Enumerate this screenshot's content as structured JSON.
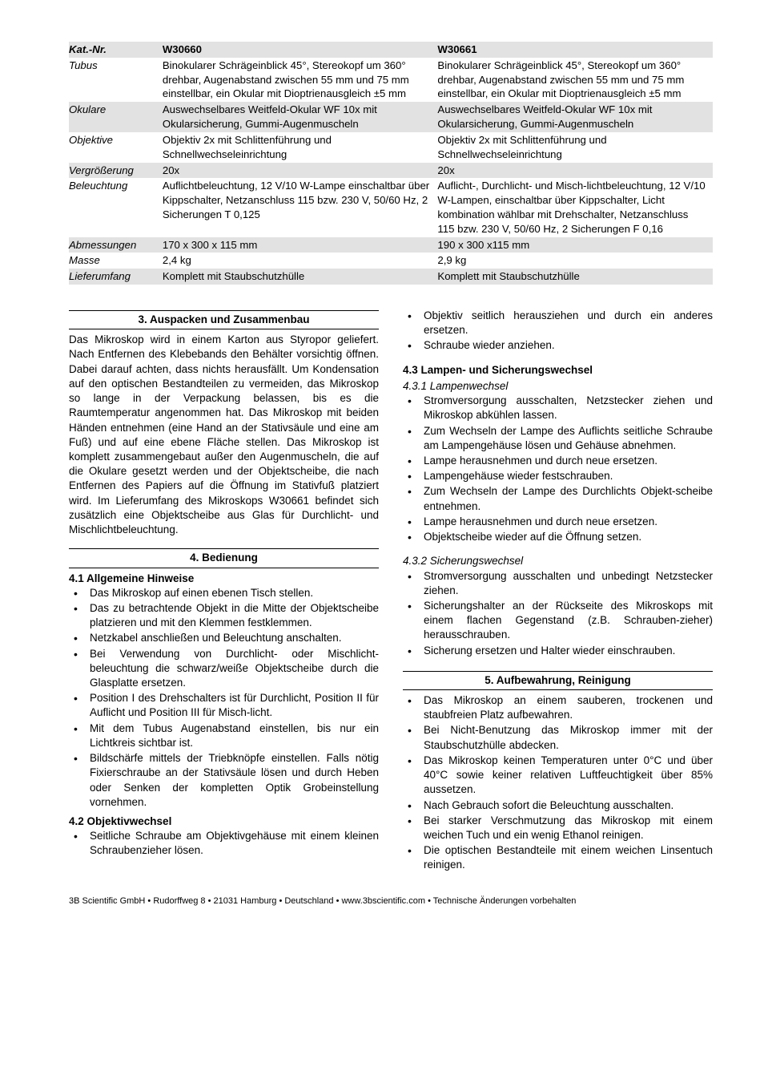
{
  "spec": {
    "rows": [
      {
        "shade": true,
        "label": "Kat.-Nr.",
        "a": "W30660",
        "b": "W30661",
        "header": true
      },
      {
        "shade": false,
        "label": "Tubus",
        "a": "Binokularer Schrägeinblick 45°, Stereokopf um 360° drehbar, Augenabstand zwischen 55 mm und 75 mm einstellbar, ein Okular mit Dioptrienausgleich ±5 mm",
        "b": "Binokularer Schrägeinblick 45°, Stereokopf um 360° drehbar, Augenabstand zwischen 55 mm und 75 mm einstellbar, ein Okular mit Dioptrienausgleich ±5 mm"
      },
      {
        "shade": true,
        "label": "Okulare",
        "a": "Auswechselbares Weitfeld-Okular WF 10x mit Okularsicherung, Gummi-Augenmuscheln",
        "b": "Auswechselbares Weitfeld-Okular WF 10x mit Okularsicherung, Gummi-Augenmuscheln"
      },
      {
        "shade": false,
        "label": "Objektive",
        "a": "Objektiv 2x mit Schlittenführung und Schnellwechseleinrichtung",
        "b": "Objektiv 2x mit Schlittenführung und Schnellwechseleinrichtung"
      },
      {
        "shade": true,
        "label": "Vergrößerung",
        "a": "20x",
        "b": "20x"
      },
      {
        "shade": false,
        "label": "Beleuchtung",
        "a": "Auflichtbeleuchtung, 12 V/10 W-Lampe einschaltbar über Kippschalter, Netzanschluss 115 bzw. 230 V, 50/60 Hz, 2 Sicherungen T 0,125",
        "b": "Auflicht-, Durchlicht- und Misch-lichtbeleuchtung, 12 V/10 W-Lampen, einschaltbar über Kippschalter, Licht kombination wählbar mit Drehschalter, Netzanschluss 115 bzw. 230 V, 50/60 Hz, 2 Sicherungen F 0,16"
      },
      {
        "shade": true,
        "label": "Abmessungen",
        "a": "170 x 300 x 115 mm",
        "b": "190 x 300 x115 mm"
      },
      {
        "shade": false,
        "label": "Masse",
        "a": "2,4 kg",
        "b": "2,9 kg"
      },
      {
        "shade": true,
        "label": "Lieferumfang",
        "a": "Komplett mit Staubschutzhülle",
        "b": "Komplett mit Staubschutzhülle"
      }
    ]
  },
  "left": {
    "s3": {
      "title": "3. Auspacken und Zusammenbau",
      "para": "Das Mikroskop wird in einem Karton aus Styropor geliefert. Nach Entfernen des Klebebands den Behälter vorsichtig öffnen. Dabei darauf achten, dass nichts herausfällt. Um Kondensation auf den optischen Bestandteilen zu vermeiden, das Mikroskop so lange in der Verpackung belassen, bis es die Raumtemperatur angenommen hat. Das Mikroskop mit beiden Händen entnehmen (eine Hand an der Stativsäule und eine am Fuß) und auf eine ebene Fläche stellen. Das Mikroskop ist komplett zusammengebaut außer den Augenmuscheln, die auf die Okulare gesetzt werden und der Objektscheibe, die nach Entfernen des Papiers auf die Öffnung im Stativfuß platziert wird. Im Lieferumfang des Mikroskops W30661 befindet sich zusätzlich eine Objektscheibe aus Glas für Durchlicht- und Mischlichtbeleuchtung."
    },
    "s4": {
      "title": "4. Bedienung",
      "h41": "4.1  Allgemeine Hinweise",
      "b41": [
        "Das Mikroskop auf einen ebenen Tisch stellen.",
        "Das zu betrachtende Objekt in die Mitte der Objektscheibe platzieren und mit den Klemmen festklemmen.",
        "Netzkabel anschließen und Beleuchtung anschalten.",
        "Bei Verwendung von Durchlicht- oder Mischlicht-beleuchtung die schwarz/weiße Objektscheibe durch die Glasplatte ersetzen.",
        "Position I des Drehschalters ist für Durchlicht, Position II für Auflicht und Position III für Misch-licht.",
        "Mit dem Tubus Augenabstand einstellen, bis nur ein Lichtkreis sichtbar ist.",
        "Bildschärfe mittels der Triebknöpfe einstellen. Falls nötig Fixierschraube an der Stativsäule lösen und durch Heben oder Senken der kompletten Optik Grobeinstellung vornehmen."
      ],
      "h42": "4.2  Objektivwechsel",
      "b42": [
        "Seitliche Schraube am Objektivgehäuse mit einem kleinen Schraubenzieher lösen."
      ]
    }
  },
  "right": {
    "cont42": [
      "Objektiv seitlich herausziehen und durch ein anderes ersetzen.",
      "Schraube wieder anziehen."
    ],
    "h43": "4.3  Lampen- und Sicherungswechsel",
    "h431": "4.3.1 Lampenwechsel",
    "b431": [
      "Stromversorgung ausschalten, Netzstecker ziehen und Mikroskop abkühlen lassen.",
      "Zum Wechseln der Lampe des Auflichts seitliche Schraube am Lampengehäuse lösen und Gehäuse abnehmen.",
      "Lampe herausnehmen und durch neue ersetzen.",
      "Lampengehäuse wieder festschrauben.",
      "Zum Wechseln der Lampe des Durchlichts Objekt-scheibe entnehmen.",
      "Lampe herausnehmen und durch neue ersetzen.",
      "Objektscheibe wieder auf die Öffnung setzen."
    ],
    "h432": "4.3.2 Sicherungswechsel",
    "b432": [
      "Stromversorgung ausschalten und unbedingt Netzstecker ziehen.",
      "Sicherungshalter an der Rückseite des Mikroskops mit einem flachen Gegenstand (z.B. Schrauben-zieher) herausschrauben.",
      "Sicherung ersetzen und Halter wieder einschrauben."
    ],
    "s5": {
      "title": "5. Aufbewahrung, Reinigung",
      "b": [
        "Das Mikroskop an einem sauberen, trockenen und staubfreien Platz aufbewahren.",
        "Bei Nicht-Benutzung das Mikroskop immer mit der Staubschutzhülle abdecken.",
        "Das Mikroskop keinen Temperaturen unter 0°C und über 40°C sowie keiner relativen Luftfeuchtigkeit über 85% aussetzen.",
        "Nach Gebrauch sofort die Beleuchtung ausschalten.",
        "Bei starker Verschmutzung das Mikroskop mit einem weichen Tuch und ein wenig Ethanol reinigen.",
        "Die optischen Bestandteile mit einem weichen Linsentuch reinigen."
      ]
    }
  },
  "footer": "3B Scientific GmbH • Rudorffweg 8 • 21031 Hamburg • Deutschland  • www.3bscientific.com • Technische Änderungen vorbehalten"
}
